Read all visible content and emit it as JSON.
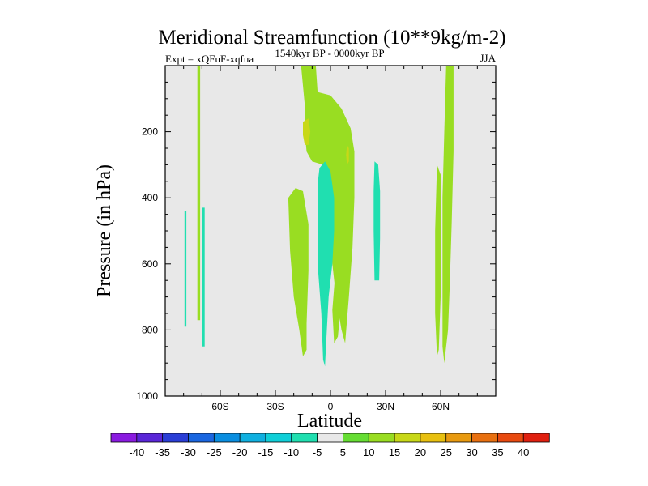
{
  "chart_data": {
    "type": "filled-contour",
    "title": "Meridional Streamfunction (10**9kg/m-2)",
    "left_label": "Expt = xQFuF-xqfua",
    "center_label": "1540kyr BP - 0000kyr BP",
    "right_label": "JJA",
    "xlabel": "Latitude",
    "ylabel": "Pressure (in hPa)",
    "xlim": [
      -90,
      90
    ],
    "ylim": [
      1000,
      0
    ],
    "x_ticks": [
      {
        "value": -60,
        "label": "60S"
      },
      {
        "value": -30,
        "label": "30S"
      },
      {
        "value": 0,
        "label": "0"
      },
      {
        "value": 30,
        "label": "30N"
      },
      {
        "value": 60,
        "label": "60N"
      }
    ],
    "y_ticks": [
      {
        "value": 200,
        "label": "200"
      },
      {
        "value": 400,
        "label": "400"
      },
      {
        "value": 600,
        "label": "600"
      },
      {
        "value": 800,
        "label": "800"
      },
      {
        "value": 1000,
        "label": "1000"
      }
    ],
    "background_color": "#e8e8e8",
    "colorbar": {
      "levels": [
        "-40",
        "-35",
        "-30",
        "-25",
        "-20",
        "-15",
        "-10",
        "-5",
        "5",
        "10",
        "15",
        "20",
        "25",
        "30",
        "35",
        "40"
      ],
      "colors": [
        "#8a1be0",
        "#5a26d8",
        "#2a3ed6",
        "#1a66e0",
        "#0a8ee0",
        "#10b0e0",
        "#10cfd8",
        "#20dfb0",
        "#e8e8e8",
        "#66dd33",
        "#99dd22",
        "#c8d818",
        "#e8c010",
        "#e89a10",
        "#e87010",
        "#e84a10",
        "#e02010"
      ]
    },
    "regions": [
      {
        "name": "sh-high-lat-positive-strip",
        "value": 10,
        "points": [
          [
            -72.5,
            0
          ],
          [
            -71,
            0
          ],
          [
            -71,
            770
          ],
          [
            -72.5,
            770
          ]
        ]
      },
      {
        "name": "sh-high-lat-negative-1",
        "value": -10,
        "points": [
          [
            -79.5,
            440
          ],
          [
            -78.5,
            440
          ],
          [
            -78.5,
            790
          ],
          [
            -79.5,
            790
          ]
        ]
      },
      {
        "name": "sh-high-lat-negative-2",
        "value": -10,
        "points": [
          [
            -70,
            430
          ],
          [
            -68.5,
            430
          ],
          [
            -68.5,
            850
          ],
          [
            -70,
            850
          ]
        ]
      },
      {
        "name": "tropical-positive-cell",
        "value": 10,
        "points": [
          [
            -16,
            0
          ],
          [
            -8,
            0
          ],
          [
            -7,
            80
          ],
          [
            0,
            90
          ],
          [
            6,
            130
          ],
          [
            11,
            190
          ],
          [
            13,
            260
          ],
          [
            13,
            400
          ],
          [
            12,
            550
          ],
          [
            10,
            700
          ],
          [
            8,
            840
          ],
          [
            6,
            800
          ],
          [
            3,
            700
          ],
          [
            1,
            600
          ],
          [
            -1,
            500
          ],
          [
            -2,
            380
          ],
          [
            -4,
            300
          ],
          [
            -10,
            290
          ],
          [
            -13,
            260
          ],
          [
            -14,
            200
          ],
          [
            -14,
            120
          ]
        ]
      },
      {
        "name": "tropical-positive-arm",
        "value": 10,
        "points": [
          [
            -4,
            230
          ],
          [
            0,
            220
          ],
          [
            5,
            280
          ],
          [
            7,
            380
          ],
          [
            8,
            500
          ],
          [
            7,
            650
          ],
          [
            4,
            820
          ],
          [
            2,
            840
          ],
          [
            1,
            740
          ],
          [
            3,
            600
          ],
          [
            4,
            450
          ],
          [
            3,
            330
          ],
          [
            0,
            280
          ],
          [
            -3,
            260
          ]
        ]
      },
      {
        "name": "tropical-positive-lower-left",
        "value": 10,
        "points": [
          [
            -23,
            400
          ],
          [
            -19,
            370
          ],
          [
            -15,
            380
          ],
          [
            -12,
            480
          ],
          [
            -12,
            620
          ],
          [
            -13,
            780
          ],
          [
            -13,
            860
          ],
          [
            -15,
            880
          ],
          [
            -17,
            800
          ],
          [
            -20,
            700
          ],
          [
            -22,
            560
          ]
        ]
      },
      {
        "name": "sh-subtropical-negative-cell",
        "value": -10,
        "points": [
          [
            -6,
            310
          ],
          [
            -3,
            290
          ],
          [
            0,
            320
          ],
          [
            2,
            400
          ],
          [
            2,
            500
          ],
          [
            1,
            600
          ],
          [
            -1,
            700
          ],
          [
            -2,
            800
          ],
          [
            -3,
            910
          ],
          [
            -4,
            890
          ],
          [
            -5,
            750
          ],
          [
            -7,
            600
          ],
          [
            -7,
            450
          ],
          [
            -7,
            360
          ]
        ]
      },
      {
        "name": "nh-subtropical-negative-cell",
        "value": -10,
        "points": [
          [
            24,
            290
          ],
          [
            26,
            300
          ],
          [
            27,
            380
          ],
          [
            27,
            520
          ],
          [
            26.5,
            650
          ],
          [
            24,
            650
          ],
          [
            23.5,
            500
          ],
          [
            23.5,
            380
          ]
        ]
      },
      {
        "name": "nh-high-lat-positive-cell-1",
        "value": 10,
        "points": [
          [
            63,
            0
          ],
          [
            67,
            0
          ],
          [
            67,
            260
          ],
          [
            66,
            480
          ],
          [
            65,
            660
          ],
          [
            64,
            800
          ],
          [
            62,
            900
          ],
          [
            61,
            850
          ],
          [
            61,
            650
          ],
          [
            61,
            400
          ],
          [
            62,
            200
          ]
        ]
      },
      {
        "name": "nh-high-lat-positive-cell-2",
        "value": 10,
        "points": [
          [
            58,
            300
          ],
          [
            60,
            330
          ],
          [
            60,
            500
          ],
          [
            60,
            700
          ],
          [
            59,
            860
          ],
          [
            58,
            880
          ],
          [
            57,
            750
          ],
          [
            57,
            500
          ]
        ]
      },
      {
        "name": "upper-positive-core",
        "value": 15,
        "points": [
          [
            -15,
            170
          ],
          [
            -12,
            160
          ],
          [
            -11,
            200
          ],
          [
            -12,
            240
          ],
          [
            -14,
            240
          ],
          [
            -15,
            210
          ]
        ]
      },
      {
        "name": "nh-upper-positive-core",
        "value": 15,
        "points": [
          [
            9,
            240
          ],
          [
            10,
            250
          ],
          [
            10,
            290
          ],
          [
            9,
            300
          ],
          [
            8.5,
            270
          ]
        ]
      }
    ]
  }
}
